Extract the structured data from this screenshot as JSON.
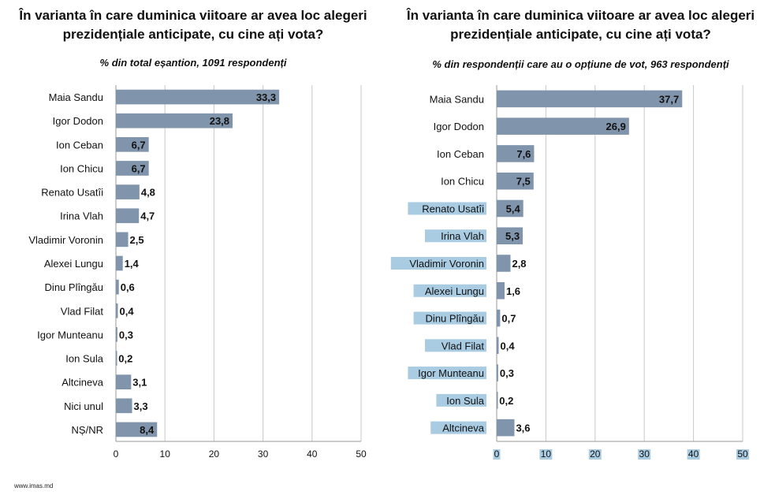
{
  "source": "www.imas.md",
  "chart_data": [
    {
      "type": "bar",
      "orientation": "horizontal",
      "title": "În varianta în care duminica viitoare ar avea loc alegeri prezidențiale anticipate, cu cine ați vota?",
      "title_lines": [
        "În varianta în care duminica viitoare ar avea loc alegeri",
        "prezidențiale anticipate, cu cine ați vota?"
      ],
      "subtitle": "% din total eșantion, 1091 respondenți",
      "categories": [
        "Maia Sandu",
        "Igor Dodon",
        "Ion Ceban",
        "Ion Chicu",
        "Renato Usatîi",
        "Irina Vlah",
        "Vladimir Voronin",
        "Alexei Lungu",
        "Dinu Plîngău",
        "Vlad Filat",
        "Igor Munteanu",
        "Ion Sula",
        "Altcineva",
        "Nici unul",
        "NȘ/NR"
      ],
      "values": [
        33.3,
        23.8,
        6.7,
        6.7,
        4.8,
        4.7,
        2.5,
        1.4,
        0.6,
        0.4,
        0.3,
        0.2,
        3.1,
        3.3,
        8.4
      ],
      "value_labels": [
        "33,3",
        "23,8",
        "6,7",
        "6,7",
        "4,8",
        "4,7",
        "2,5",
        "1,4",
        "0,6",
        "0,4",
        "0,3",
        "0,2",
        "3,1",
        "3,3",
        "8,4"
      ],
      "xlim": [
        0,
        50
      ],
      "xticks": [
        0,
        10,
        20,
        30,
        40,
        50
      ],
      "xtick_labels": [
        "0",
        "10",
        "20",
        "30",
        "40",
        "50"
      ],
      "grid": true,
      "legend": "none",
      "bar_color": "#8094ac"
    },
    {
      "type": "bar",
      "orientation": "horizontal",
      "title": "În varianta în care duminica viitoare ar avea loc alegeri prezidențiale anticipate, cu cine ați vota?",
      "title_lines": [
        "În varianta în care duminica viitoare ar avea loc alegeri",
        "prezidențiale anticipate, cu cine ați vota?"
      ],
      "subtitle": "% din respondenții care au o opțiune de vot, 963 respondenți",
      "categories": [
        "Maia Sandu",
        "Igor Dodon",
        "Ion Ceban",
        "Ion Chicu",
        "Renato Usatîi",
        "Irina Vlah",
        "Vladimir Voronin",
        "Alexei Lungu",
        "Dinu Plîngău",
        "Vlad Filat",
        "Igor Munteanu",
        "Ion Sula",
        "Altcineva"
      ],
      "values": [
        37.7,
        26.9,
        7.6,
        7.5,
        5.4,
        5.3,
        2.8,
        1.6,
        0.7,
        0.4,
        0.3,
        0.2,
        3.6
      ],
      "value_labels": [
        "37,7",
        "26,9",
        "7,6",
        "7,5",
        "5,4",
        "5,3",
        "2,8",
        "1,6",
        "0,7",
        "0,4",
        "0,3",
        "0,2",
        "3,6"
      ],
      "xlim": [
        0,
        50
      ],
      "xticks": [
        0,
        10,
        20,
        30,
        40,
        50
      ],
      "xtick_labels": [
        "0",
        "10",
        "20",
        "30",
        "40",
        "50"
      ],
      "grid": true,
      "legend": "none",
      "bar_color": "#8094ac",
      "label_highlight_color": "#a9cce3"
    }
  ]
}
